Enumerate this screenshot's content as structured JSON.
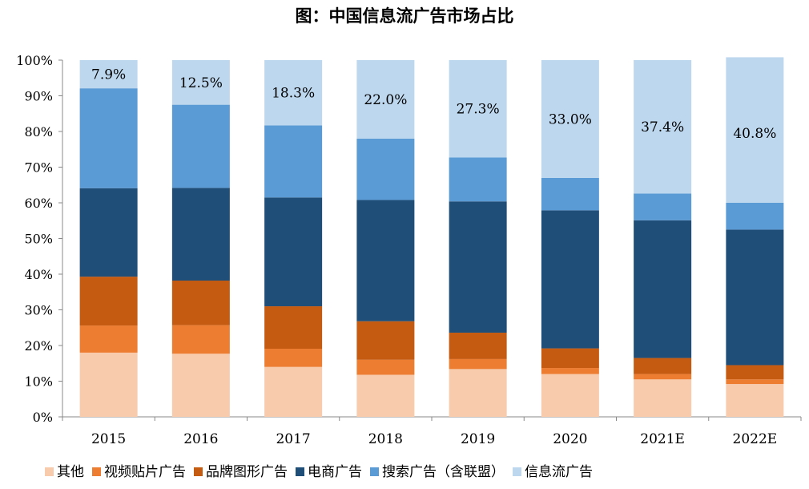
{
  "chart_data": {
    "type": "bar",
    "stacked": true,
    "title": "图：中国信息流广告市场占比",
    "categories": [
      "2015",
      "2016",
      "2017",
      "2018",
      "2019",
      "2020",
      "2021E",
      "2022E"
    ],
    "series": [
      {
        "name": "其他",
        "color": "#F8CBAD",
        "values": [
          18.0,
          17.7,
          14.0,
          11.8,
          13.4,
          12.0,
          10.5,
          9.2
        ]
      },
      {
        "name": "视频贴片广告",
        "color": "#ED7D31",
        "values": [
          7.6,
          8.0,
          5.1,
          4.2,
          2.8,
          1.7,
          1.5,
          1.3
        ]
      },
      {
        "name": "品牌图形广告",
        "color": "#C55A11",
        "values": [
          13.7,
          12.5,
          11.9,
          10.8,
          7.4,
          5.5,
          4.5,
          4.0
        ]
      },
      {
        "name": "电商广告",
        "color": "#1F4E79",
        "values": [
          24.8,
          26.0,
          30.5,
          34.0,
          36.8,
          38.7,
          38.6,
          38.0
        ]
      },
      {
        "name": "搜索广告（含联盟）",
        "color": "#5B9BD5",
        "values": [
          28.0,
          23.3,
          20.2,
          17.2,
          12.3,
          9.1,
          7.5,
          7.5
        ]
      },
      {
        "name": "信息流广告",
        "color": "#BDD7EE",
        "values": [
          7.9,
          12.5,
          18.3,
          22.0,
          27.3,
          33.0,
          37.4,
          40.8
        ]
      }
    ],
    "data_labels": [
      "7.9%",
      "12.5%",
      "18.3%",
      "22.0%",
      "27.3%",
      "33.0%",
      "37.4%",
      "40.8%"
    ],
    "yticks": [
      "0%",
      "10%",
      "20%",
      "30%",
      "40%",
      "50%",
      "60%",
      "70%",
      "80%",
      "90%",
      "100%"
    ],
    "ylim": [
      0,
      100
    ],
    "legend_position": "bottom",
    "grid": false
  }
}
